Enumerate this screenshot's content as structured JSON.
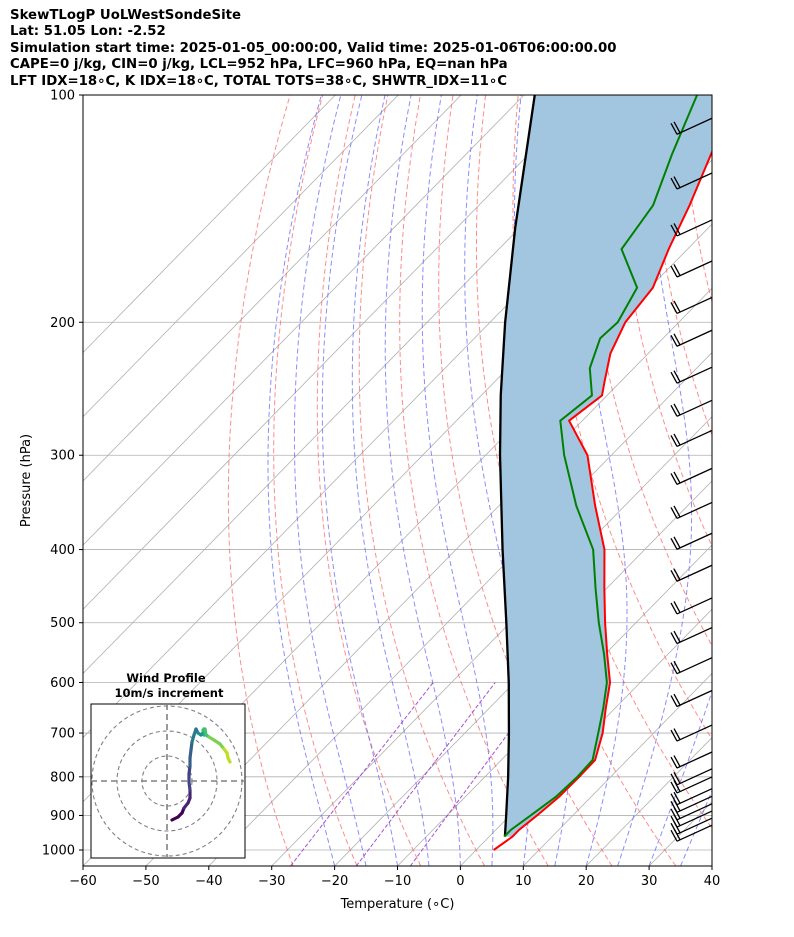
{
  "header": {
    "line1": "SkewTLogP UoLWestSondeSite",
    "line2": "Lat: 51.05   Lon: -2.52",
    "line3": "Simulation start time: 2025-01-05_00:00:00, Valid time: 2025-01-06T06:00:00.00",
    "line4": "CAPE=0 j/kg, CIN=0 j/kg, LCL=952 hPa, LFC=960 hPa, EQ=nan hPa",
    "line5": "LFT IDX=18∘C, K IDX=18∘C, TOTAL TOTS=38∘C, SHWTR_IDX=11∘C"
  },
  "chart_data": [
    {
      "type": "line",
      "chart_kind": "skew-T log-P diagram",
      "xlabel": "Temperature (∘C)",
      "ylabel": "Pressure (hPa)",
      "x_ticks": [
        "−60",
        "−50",
        "−40",
        "−30",
        "−20",
        "−10",
        "0",
        "10",
        "20",
        "30",
        "40"
      ],
      "x_tick_values": [
        -60,
        -50,
        -40,
        -30,
        -20,
        -10,
        0,
        10,
        20,
        30,
        40
      ],
      "y_ticks": [
        "100",
        "200",
        "300",
        "400",
        "500",
        "600",
        "700",
        "800",
        "900",
        "1000"
      ],
      "y_tick_values": [
        100,
        200,
        300,
        400,
        500,
        600,
        700,
        800,
        900,
        1000
      ],
      "xlim": [
        -60,
        40
      ],
      "ylim": [
        1050,
        100
      ],
      "y_scale": "log",
      "grid": true,
      "series": [
        {
          "role": "temperature",
          "color": "#ff0000",
          "pressure": [
            1000,
            960,
            940,
            900,
            850,
            800,
            760,
            700,
            650,
            600,
            550,
            500,
            450,
            400,
            350,
            300,
            270,
            250,
            240,
            220,
            200,
            180,
            160,
            140,
            120,
            100
          ],
          "temperature": [
            2.8,
            3.7,
            3.7,
            4.3,
            4.9,
            5.0,
            4.9,
            1.9,
            -1.4,
            -4.8,
            -9.7,
            -14.9,
            -20.4,
            -26.4,
            -34.7,
            -43.8,
            -52.1,
            -50.8,
            -52.5,
            -56.0,
            -58.5,
            -59.5,
            -63.0,
            -66.5,
            -71.0,
            -76.0
          ]
        },
        {
          "role": "dewpoint",
          "color": "#008000",
          "pressure": [
            960,
            940,
            900,
            850,
            800,
            760,
            700,
            650,
            600,
            550,
            500,
            450,
            400,
            350,
            300,
            270,
            250,
            230,
            210,
            200,
            180,
            160,
            140,
            120,
            100
          ],
          "dewpoint": [
            2.4,
            2.4,
            3.3,
            4.4,
            4.7,
            4.5,
            1.2,
            -1.8,
            -5.3,
            -10.2,
            -15.9,
            -21.8,
            -28.2,
            -37.7,
            -47.5,
            -53.5,
            -52.4,
            -57.0,
            -60.0,
            -59.7,
            -62.0,
            -70.5,
            -72.3,
            -77.2,
            -82.5
          ]
        },
        {
          "role": "parcel-profile",
          "color": "#000000",
          "pressure": [
            960,
            900,
            800,
            700,
            600,
            500,
            400,
            300,
            250,
            200,
            150,
            100
          ],
          "temperature": [
            2.5,
            -0.6,
            -6.3,
            -13.0,
            -20.9,
            -30.6,
            -42.6,
            -57.7,
            -66.9,
            -77.6,
            -90.7,
            -108.3
          ]
        },
        {
          "role": "cape-cin-shading",
          "color": "#a3c6e0"
        }
      ],
      "reference_lines": {
        "isotherms_color": "#b0b0b0",
        "dry_adiabats_color": "#ff6666",
        "moist_adiabats_color": "#6666ff",
        "mixing_ratio_color": "#9933cc"
      },
      "wind_barbs": {
        "color": "#000000",
        "pressure": [
          110,
          130,
          150,
          170,
          190,
          210,
          235,
          260,
          285,
          320,
          355,
          390,
          430,
          475,
          520,
          570,
          630,
          700,
          760,
          800,
          820,
          850,
          870,
          890,
          910,
          930,
          950
        ]
      }
    },
    {
      "type": "line",
      "chart_kind": "hodograph",
      "title": "Wind Profile",
      "subtitle": "10m/s increment",
      "colormap": "viridis",
      "grid": true
    }
  ]
}
